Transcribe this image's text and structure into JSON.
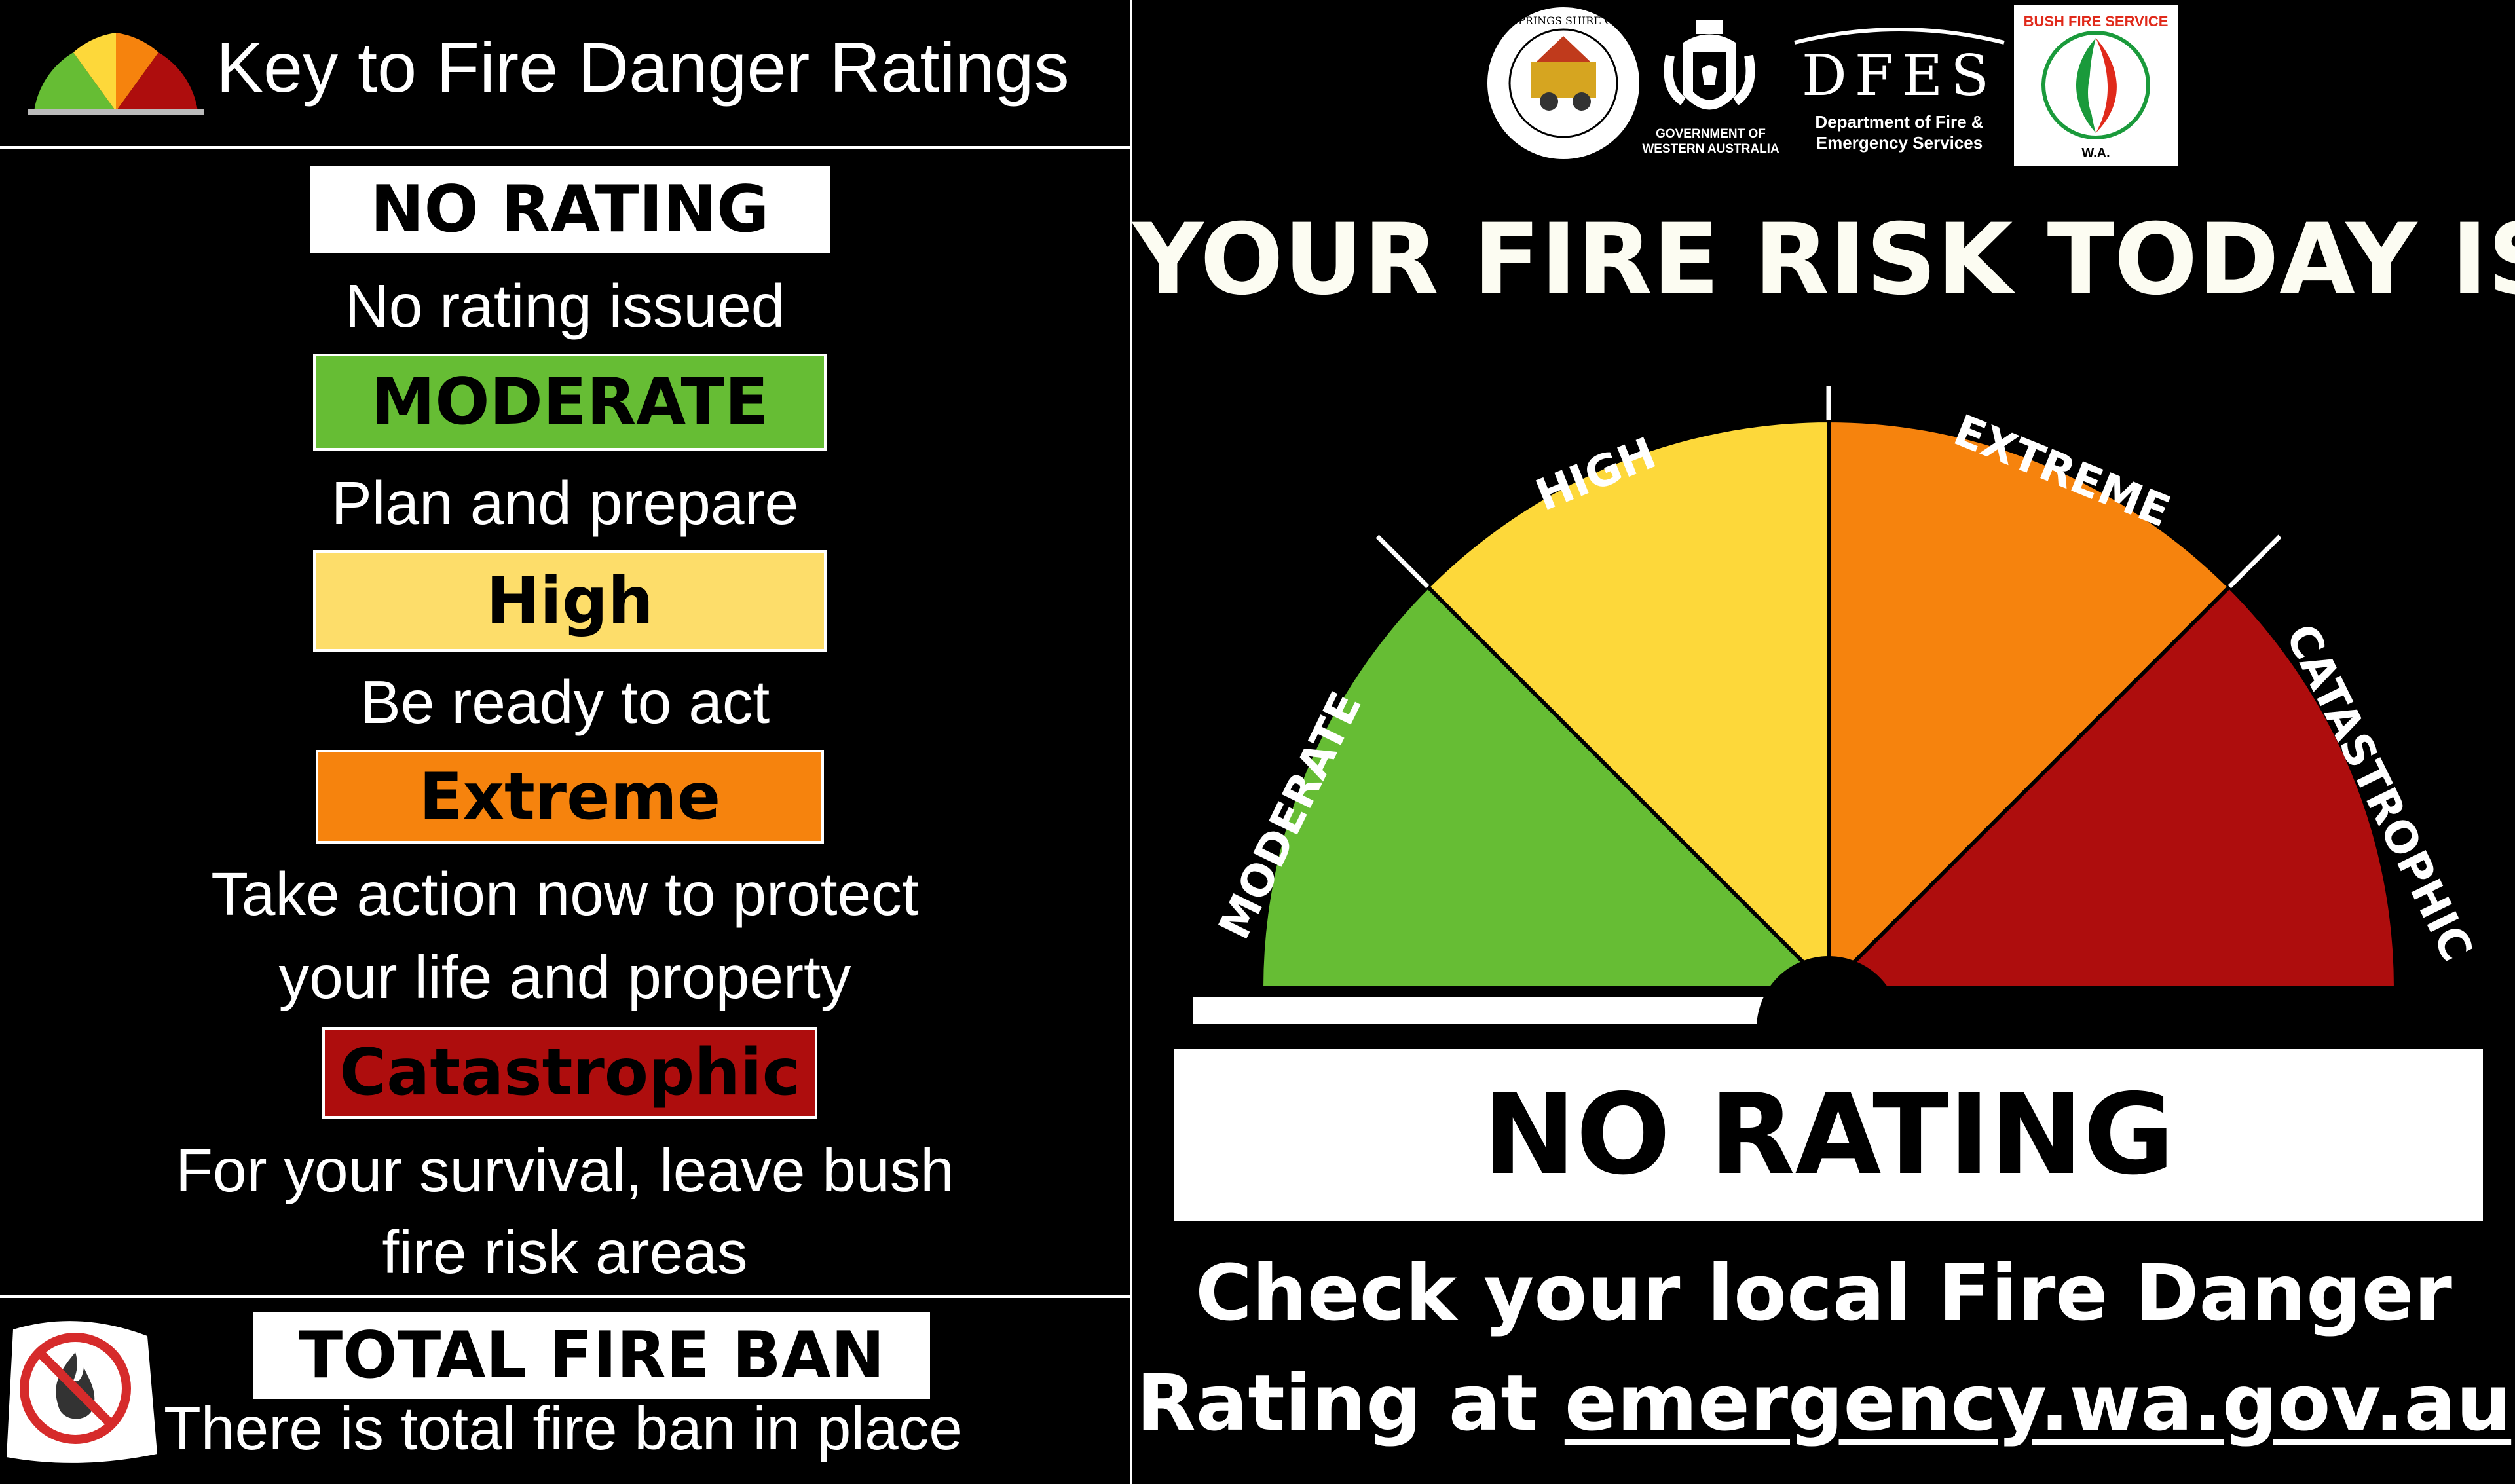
{
  "colors": {
    "moderate": "#66bd34",
    "high": "#fdd83a",
    "extreme": "#f6830d",
    "catastrophic": "#ae0d0d",
    "high_key": "#fddd6a"
  },
  "key": {
    "title": "Key to Fire Danger Ratings",
    "ratings": [
      {
        "label": "NO RATING",
        "description": "No rating issued"
      },
      {
        "label": "MODERATE",
        "description": "Plan and prepare"
      },
      {
        "label": "High",
        "description": "Be ready to act"
      },
      {
        "label": "Extreme",
        "description_line1": "Take action now to protect",
        "description_line2": "your life and property"
      },
      {
        "label": "Catastrophic",
        "description_line1": "For your survival, leave bush",
        "description_line2": "fire risk areas"
      }
    ],
    "total_fire_ban": {
      "label": "TOTAL FIRE BAN",
      "description": "There is total fire ban in place"
    }
  },
  "logos": {
    "council": "THREE SPRINGS SHIRE COUNCIL",
    "gov_line1": "GOVERNMENT OF",
    "gov_line2": "WESTERN AUSTRALIA",
    "dfes": "DFES",
    "dfes_line1": "Department of Fire &",
    "dfes_line2": "Emergency Services",
    "bfs": "BUSH FIRE SERVICE",
    "bfs_wa": "W.A."
  },
  "main": {
    "headline": "YOUR FIRE RISK TODAY IS",
    "gauge_labels": {
      "moderate": "MODERATE",
      "high": "HIGH",
      "extreme": "EXTREME",
      "catastrophic": "CATASTROPHIC"
    },
    "current_rating": "NO RATING",
    "footer_line1": "Check your local Fire Danger",
    "footer_line2_prefix": "Rating at ",
    "footer_link": "emergency.wa.gov.au"
  }
}
